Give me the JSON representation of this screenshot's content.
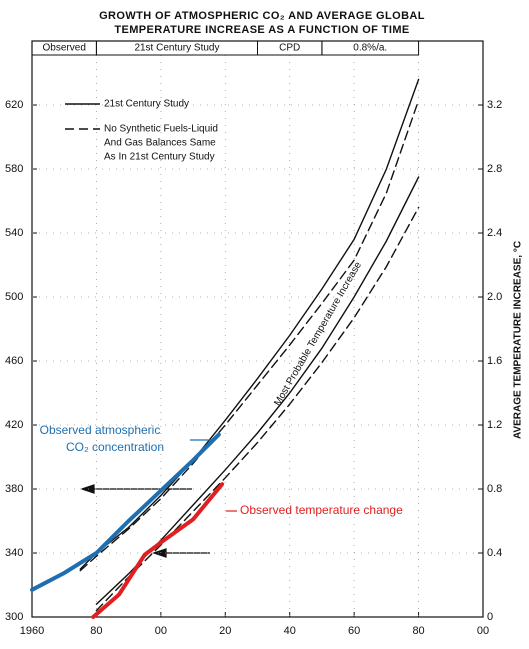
{
  "chart_data": {
    "type": "line",
    "title": [
      "GROWTH OF ATMOSPHERIC CO₂ AND AVERAGE GLOBAL",
      "TEMPERATURE INCREASE AS A FUNCTION OF TIME"
    ],
    "y2_label": "AVERAGE TEMPERATURE INCREASE, °C",
    "xlim": [
      1960,
      2100
    ],
    "xticks": [
      {
        "value": 1960,
        "label": "1960"
      },
      {
        "value": 1980,
        "label": "80"
      },
      {
        "value": 2000,
        "label": "00"
      },
      {
        "value": 2020,
        "label": "20"
      },
      {
        "value": 2040,
        "label": "40"
      },
      {
        "value": 2060,
        "label": "60"
      },
      {
        "value": 2080,
        "label": "80"
      },
      {
        "value": 2100,
        "label": "00"
      }
    ],
    "ylim": [
      300,
      660
    ],
    "yticks": [
      300,
      340,
      380,
      420,
      460,
      500,
      540,
      580,
      620
    ],
    "y2lim": [
      0,
      3.6
    ],
    "y2ticks": [
      0,
      0.4,
      0.8,
      1.2,
      1.6,
      {
        "value": 2,
        "label": "2.0"
      },
      2.4,
      2.8,
      3.2
    ],
    "grid": true,
    "periods": [
      {
        "label": "Observed",
        "start": 1960,
        "end": 1980
      },
      {
        "label": "21st Century Study",
        "start": 1980,
        "end": 2030
      },
      {
        "label": "CPD",
        "start": 2030,
        "end": 2050
      },
      {
        "label": "0.8%/a.",
        "start": 2050,
        "end": 2080
      }
    ],
    "annotation": "Most Probable Temperature Increase",
    "series": [
      {
        "name": [
          "21st Century Study"
        ],
        "color": "#111111",
        "dashed": false,
        "axis": "y",
        "x": [
          1975,
          1980,
          1990,
          2000,
          2010,
          2020,
          2030,
          2040,
          2050,
          2060,
          2070,
          2080
        ],
        "values": [
          330,
          340,
          356,
          376,
          398,
          423,
          449,
          476,
          505,
          536,
          580,
          636
        ]
      },
      {
        "name": [
          "No Synthetic Fuels-Liquid",
          "And Gas Balances Same",
          "As In 21st Century Study"
        ],
        "color": "#111111",
        "dashed": true,
        "axis": "y",
        "x": [
          1975,
          1980,
          1990,
          2000,
          2010,
          2020,
          2030,
          2040,
          2050,
          2060,
          2070,
          2080
        ],
        "values": [
          329,
          338,
          355,
          374,
          396,
          420,
          445,
          470,
          496,
          523,
          565,
          623
        ]
      },
      {
        "color": "#111111",
        "dashed": false,
        "axis": "y2",
        "x": [
          1980,
          1990,
          2000,
          2010,
          2020,
          2030,
          2040,
          2050,
          2060,
          2070,
          2080
        ],
        "values": [
          0.08,
          0.27,
          0.48,
          0.7,
          0.92,
          1.15,
          1.4,
          1.68,
          2.0,
          2.35,
          2.75
        ]
      },
      {
        "color": "#111111",
        "dashed": true,
        "axis": "y2",
        "x": [
          1980,
          1990,
          2000,
          2010,
          2020,
          2030,
          2040,
          2050,
          2060,
          2070,
          2080
        ],
        "values": [
          0.04,
          0.25,
          0.45,
          0.66,
          0.87,
          1.09,
          1.33,
          1.59,
          1.87,
          2.19,
          2.56
        ]
      },
      {
        "name": [
          "Observed atmospheric",
          "CO₂ concentration"
        ],
        "color": "#1f6fb0",
        "dashed": false,
        "axis": "y",
        "width": 4,
        "x": [
          1960,
          1970,
          1980,
          1990,
          2000,
          2010,
          2018
        ],
        "values": [
          317,
          327.5,
          340,
          360,
          379,
          398,
          414
        ]
      },
      {
        "name": [
          "Observed temperature change"
        ],
        "color": "#e02020",
        "dashed": false,
        "axis": "y2",
        "width": 4,
        "x": [
          1979,
          1987,
          1995,
          2001,
          2010,
          2019
        ],
        "values": [
          0,
          0.14,
          0.39,
          0.48,
          0.61,
          0.83
        ]
      }
    ]
  }
}
